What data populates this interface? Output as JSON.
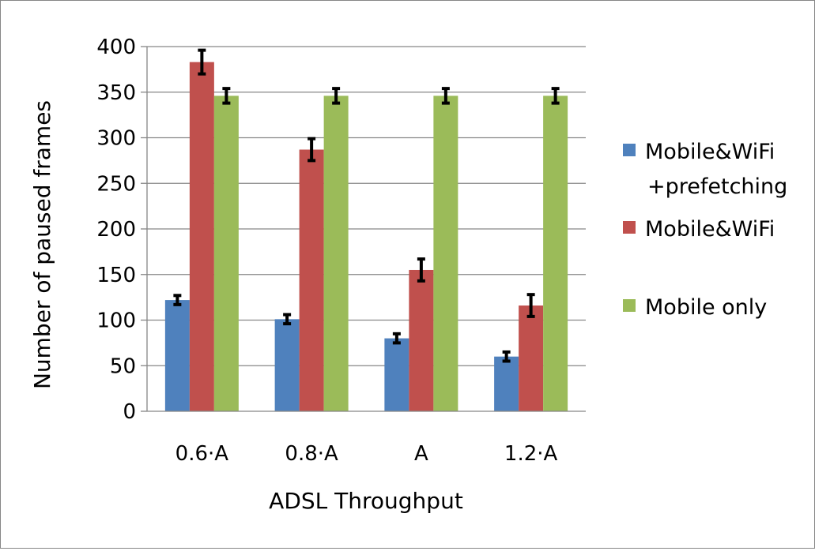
{
  "chart_data": {
    "type": "bar",
    "title": "",
    "xlabel": "ADSL Throughput",
    "ylabel": "Number of paused frames",
    "ylim": [
      0,
      400
    ],
    "yticks": [
      "0",
      "50",
      "100",
      "150",
      "200",
      "250",
      "300",
      "350",
      "400"
    ],
    "grid": true,
    "legend_position": "right",
    "categories": [
      "0.6·A",
      "0.8·A",
      "A",
      "1.2·A"
    ],
    "series": [
      {
        "name": "Mobile&WiFi +prefetching",
        "legend_lines": [
          "Mobile&WiFi",
          "+prefetching"
        ],
        "color": "#4F81BD",
        "values": [
          122,
          101,
          80,
          60
        ],
        "errors": [
          5,
          5,
          5,
          5
        ]
      },
      {
        "name": "Mobile&WiFi",
        "legend_lines": [
          "Mobile&WiFi"
        ],
        "color": "#C0504D",
        "values": [
          383,
          287,
          155,
          116
        ],
        "errors": [
          13,
          12,
          12,
          12
        ]
      },
      {
        "name": "Mobile only",
        "legend_lines": [
          "Mobile only"
        ],
        "color": "#9BBB59",
        "values": [
          346,
          346,
          346,
          346
        ],
        "errors": [
          8,
          8,
          8,
          8
        ]
      }
    ]
  }
}
